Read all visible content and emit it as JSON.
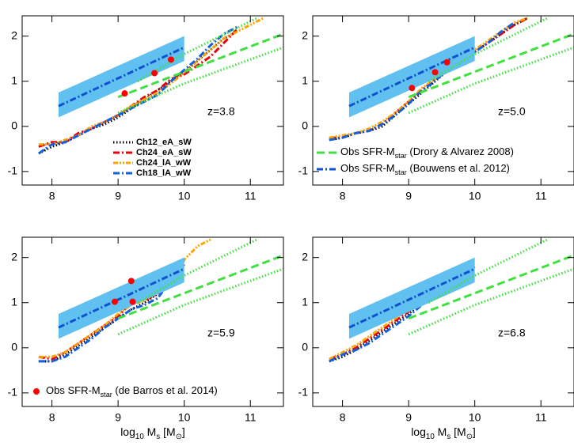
{
  "chart_data": [
    {
      "type": "line",
      "annotation": "z=3.8",
      "legend": "lower center",
      "xlim": [
        7.55,
        11.5
      ],
      "ylim": [
        -1.3,
        2.45
      ],
      "xticks": [
        8,
        9,
        10,
        11
      ],
      "yticks": [
        -1,
        0,
        1,
        2
      ],
      "series": [
        {
          "name": "Ch12_eA_sW",
          "color": "#000000",
          "style": "dotted",
          "x": [
            7.8,
            8.0,
            8.2,
            8.4,
            8.6,
            8.8,
            9.0,
            9.2,
            9.4,
            9.6,
            9.8,
            10.0,
            10.2,
            10.4,
            10.6,
            10.8
          ],
          "values": [
            -0.6,
            -0.45,
            -0.35,
            -0.2,
            -0.05,
            0.05,
            0.2,
            0.4,
            0.6,
            0.8,
            1.0,
            1.2,
            1.45,
            1.7,
            1.95,
            2.1
          ]
        },
        {
          "name": "Ch24_eA_sW",
          "color": "#e8000b",
          "style": "dashdot",
          "x": [
            7.8,
            8.0,
            8.2,
            8.4,
            8.6,
            8.8,
            9.0,
            9.2,
            9.4,
            9.6,
            9.8,
            10.0,
            10.2,
            10.4,
            10.6,
            10.8
          ],
          "values": [
            -0.45,
            -0.35,
            -0.35,
            -0.15,
            -0.05,
            0.1,
            0.25,
            0.45,
            0.65,
            0.8,
            1.05,
            1.15,
            1.35,
            1.55,
            1.85,
            2.15
          ]
        },
        {
          "name": "Ch24_lA_wW",
          "color": "#ffa500",
          "style": "dashdotdot",
          "x": [
            7.8,
            8.0,
            8.2,
            8.4,
            8.6,
            8.8,
            9.0,
            9.2,
            9.4,
            9.6,
            9.8,
            10.0,
            10.2,
            10.4,
            10.6,
            10.8,
            11.0,
            11.2
          ],
          "values": [
            -0.4,
            -0.4,
            -0.3,
            -0.2,
            0.0,
            0.1,
            0.25,
            0.45,
            0.6,
            0.75,
            0.95,
            1.2,
            1.45,
            1.7,
            1.95,
            2.1,
            2.25,
            2.4
          ]
        },
        {
          "name": "Ch18_lA_wW",
          "color": "#1060e0",
          "style": "dashdot",
          "x": [
            7.8,
            8.0,
            8.2,
            8.4,
            8.6,
            8.8,
            9.0,
            9.2,
            9.4,
            9.6,
            9.8,
            10.0,
            10.2,
            10.4,
            10.6,
            10.8
          ],
          "values": [
            -0.6,
            -0.4,
            -0.35,
            -0.2,
            -0.05,
            0.1,
            0.25,
            0.4,
            0.55,
            0.7,
            1.0,
            1.25,
            1.5,
            1.8,
            2.05,
            2.2
          ]
        },
        {
          "color": "#60c0f0",
          "style": "band",
          "x": [
            8.1,
            10.0
          ],
          "upper": [
            0.75,
            2.0
          ],
          "lower": [
            0.2,
            1.45
          ]
        },
        {
          "color": "#1050d0",
          "style": "dashdot",
          "x": [
            8.1,
            10.0
          ],
          "values": [
            0.45,
            1.75
          ]
        },
        {
          "color": "#40e040",
          "style": "dashed",
          "x": [
            9.0,
            11.5
          ],
          "values": [
            0.65,
            2.05
          ]
        },
        {
          "color": "#40e040",
          "style": "dotted",
          "x": [
            9.3,
            10.0,
            11.1
          ],
          "values": [
            1.0,
            1.6,
            2.4
          ]
        },
        {
          "color": "#40e040",
          "style": "dotted",
          "x": [
            9.0,
            10.0,
            11.5
          ],
          "values": [
            0.3,
            0.95,
            1.75
          ]
        },
        {
          "color": "#ff0000",
          "style": "points",
          "x": [
            9.1,
            9.55,
            9.8
          ],
          "values": [
            0.73,
            1.18,
            1.48
          ]
        }
      ]
    },
    {
      "type": "line",
      "annotation": "z=5.0",
      "legend": "lower left",
      "xlim": [
        7.55,
        11.5
      ],
      "ylim": [
        -1.3,
        2.45
      ],
      "xticks": [
        8,
        9,
        10,
        11
      ],
      "yticks": [
        -1,
        0,
        1,
        2
      ],
      "series": [
        {
          "color": "#000000",
          "style": "dotted",
          "x": [
            7.8,
            8.0,
            8.2,
            8.4,
            8.6,
            8.8,
            9.0,
            9.2,
            9.4,
            9.6,
            9.8,
            10.0,
            10.2,
            10.4,
            10.6,
            10.8
          ],
          "values": [
            -0.3,
            -0.25,
            -0.15,
            -0.1,
            0.0,
            0.25,
            0.5,
            0.75,
            1.0,
            1.25,
            1.45,
            1.65,
            1.85,
            2.05,
            2.25,
            2.4
          ]
        },
        {
          "color": "#e8000b",
          "style": "dashdot",
          "x": [
            7.8,
            8.0,
            8.2,
            8.4,
            8.6,
            8.8,
            9.0,
            9.2,
            9.4,
            9.6,
            9.8,
            10.0,
            10.2,
            10.4,
            10.6,
            10.8
          ],
          "values": [
            -0.25,
            -0.25,
            -0.15,
            -0.1,
            0.05,
            0.3,
            0.55,
            0.8,
            1.05,
            1.3,
            1.5,
            1.65,
            1.85,
            2.05,
            2.25,
            2.4
          ]
        },
        {
          "color": "#ffa500",
          "style": "dashdotdot",
          "x": [
            7.8,
            8.0,
            8.2,
            8.4,
            8.6,
            8.8,
            9.0,
            9.2,
            9.4,
            9.6,
            9.8,
            10.0,
            10.2,
            10.4,
            10.6,
            10.8
          ],
          "values": [
            -0.25,
            -0.2,
            -0.15,
            -0.05,
            0.1,
            0.3,
            0.55,
            0.85,
            1.05,
            1.3,
            1.55,
            1.7,
            1.9,
            2.1,
            2.3,
            2.4
          ]
        },
        {
          "color": "#1060e0",
          "style": "dashdot",
          "x": [
            7.8,
            8.0,
            8.2,
            8.4,
            8.6,
            8.8,
            9.0,
            9.2,
            9.4,
            9.6,
            9.8,
            10.0,
            10.2,
            10.4,
            10.6
          ],
          "values": [
            -0.3,
            -0.25,
            -0.15,
            -0.1,
            0.05,
            0.25,
            0.5,
            0.8,
            1.0,
            1.3,
            1.5,
            1.65,
            1.85,
            2.1,
            2.3
          ]
        },
        {
          "color": "#60c0f0",
          "style": "band",
          "x": [
            8.1,
            10.0
          ],
          "upper": [
            0.75,
            2.0
          ],
          "lower": [
            0.2,
            1.45
          ]
        },
        {
          "name": [
            "Obs SFR-M",
            "star",
            " (Bouwens et al. 2012)"
          ],
          "color": "#1050d0",
          "style": "dashdot",
          "x": [
            8.1,
            10.0
          ],
          "values": [
            0.45,
            1.75
          ]
        },
        {
          "name": [
            "Obs SFR-M",
            "star",
            " (Drory & Alvarez 2008)"
          ],
          "color": "#40e040",
          "style": "dashed",
          "x": [
            9.0,
            11.5
          ],
          "values": [
            0.65,
            2.05
          ]
        },
        {
          "color": "#40e040",
          "style": "dotted",
          "x": [
            9.3,
            10.0,
            11.1
          ],
          "values": [
            1.0,
            1.6,
            2.4
          ]
        },
        {
          "color": "#40e040",
          "style": "dotted",
          "x": [
            9.0,
            10.0,
            11.5
          ],
          "values": [
            0.3,
            0.95,
            1.75
          ]
        },
        {
          "color": "#ff0000",
          "style": "points",
          "x": [
            9.05,
            9.4,
            9.58
          ],
          "values": [
            0.85,
            1.2,
            1.42
          ]
        }
      ]
    },
    {
      "type": "line",
      "annotation": "z=5.9",
      "legend": "lower left",
      "xlabel": [
        "log",
        "10",
        " M",
        "s",
        " [M",
        "⊙",
        "]"
      ],
      "xlim": [
        7.55,
        11.5
      ],
      "ylim": [
        -1.3,
        2.45
      ],
      "xticks": [
        8,
        9,
        10,
        11
      ],
      "yticks": [
        -1,
        0,
        1,
        2
      ],
      "series": [
        {
          "color": "#000000",
          "style": "dotted",
          "x": [
            7.8,
            8.0,
            8.2,
            8.4,
            8.6,
            8.8,
            9.0,
            9.2,
            9.4,
            9.6,
            9.8,
            10.0
          ],
          "values": [
            -0.3,
            -0.3,
            -0.15,
            0.05,
            0.25,
            0.45,
            0.65,
            0.85,
            1.0,
            1.2,
            1.55,
            1.9
          ]
        },
        {
          "color": "#e8000b",
          "style": "dashdot",
          "x": [
            7.8,
            8.0,
            8.2,
            8.4,
            8.6,
            8.8,
            9.0,
            9.2,
            9.4,
            9.6,
            9.8,
            10.0
          ],
          "values": [
            -0.2,
            -0.25,
            -0.1,
            0.1,
            0.3,
            0.5,
            0.7,
            1.0,
            1.05,
            1.2,
            1.5,
            1.85
          ]
        },
        {
          "color": "#ffa500",
          "style": "dashdotdot",
          "x": [
            7.8,
            8.0,
            8.2,
            8.4,
            8.6,
            8.8,
            9.0,
            9.2,
            9.4,
            9.6,
            9.8,
            10.0,
            10.2,
            10.4
          ],
          "values": [
            -0.2,
            -0.2,
            -0.1,
            0.1,
            0.3,
            0.5,
            0.75,
            0.95,
            1.05,
            1.25,
            1.6,
            1.95,
            2.25,
            2.4
          ]
        },
        {
          "color": "#1060e0",
          "style": "dashdot",
          "x": [
            7.8,
            8.0,
            8.2,
            8.4,
            8.6,
            8.8,
            9.0,
            9.2,
            9.4,
            9.6,
            9.8,
            10.0
          ],
          "values": [
            -0.3,
            -0.3,
            -0.2,
            0.0,
            0.2,
            0.45,
            0.65,
            0.85,
            0.95,
            1.1,
            1.5,
            1.95
          ]
        },
        {
          "color": "#60c0f0",
          "style": "band",
          "x": [
            8.1,
            10.0
          ],
          "upper": [
            0.75,
            2.0
          ],
          "lower": [
            0.2,
            1.45
          ]
        },
        {
          "color": "#1050d0",
          "style": "dashdot",
          "x": [
            8.1,
            10.0
          ],
          "values": [
            0.45,
            1.75
          ]
        },
        {
          "color": "#40e040",
          "style": "dashed",
          "x": [
            9.0,
            11.5
          ],
          "values": [
            0.65,
            2.05
          ]
        },
        {
          "color": "#40e040",
          "style": "dotted",
          "x": [
            9.3,
            10.0,
            11.1
          ],
          "values": [
            1.0,
            1.6,
            2.4
          ]
        },
        {
          "color": "#40e040",
          "style": "dotted",
          "x": [
            9.0,
            10.0,
            11.5
          ],
          "values": [
            0.3,
            0.95,
            1.75
          ]
        },
        {
          "name": [
            "Obs SFR-M",
            "star",
            " (de Barros et al. 2014)"
          ],
          "color": "#ff0000",
          "style": "points",
          "x": [
            8.95,
            9.2,
            9.22
          ],
          "values": [
            1.02,
            1.48,
            1.02
          ]
        }
      ]
    },
    {
      "type": "line",
      "annotation": "z=6.8",
      "xlabel": [
        "log",
        "10",
        " M",
        "s",
        " [M",
        "⊙",
        "]"
      ],
      "xlim": [
        7.55,
        11.5
      ],
      "ylim": [
        -1.3,
        2.45
      ],
      "xticks": [
        8,
        9,
        10,
        11
      ],
      "yticks": [
        -1,
        0,
        1,
        2
      ],
      "series": [
        {
          "color": "#000000",
          "style": "dotted",
          "x": [
            7.8,
            8.0,
            8.2,
            8.4,
            8.6,
            8.8,
            9.0,
            9.2,
            9.4,
            9.6,
            9.8,
            10.0
          ],
          "values": [
            -0.3,
            -0.2,
            -0.05,
            0.15,
            0.35,
            0.55,
            0.75,
            1.0,
            1.35,
            1.5,
            1.65,
            1.8
          ]
        },
        {
          "color": "#e8000b",
          "style": "dashdot",
          "x": [
            7.8,
            8.0,
            8.2,
            8.4,
            8.6,
            8.8,
            9.0,
            9.2,
            9.4,
            9.6,
            9.8,
            10.0
          ],
          "values": [
            -0.25,
            -0.15,
            0.0,
            0.2,
            0.4,
            0.6,
            0.8,
            1.05,
            1.4,
            1.5,
            1.65,
            1.8
          ]
        },
        {
          "color": "#ffa500",
          "style": "dashdotdot",
          "x": [
            7.8,
            8.0,
            8.2,
            8.4,
            8.6,
            8.8,
            9.0,
            9.2,
            9.4,
            9.6,
            9.8,
            10.0
          ],
          "values": [
            -0.25,
            -0.1,
            0.05,
            0.25,
            0.45,
            0.65,
            0.85,
            1.1,
            1.4,
            1.5,
            1.65,
            1.8
          ]
        },
        {
          "color": "#1060e0",
          "style": "dashdot",
          "x": [
            7.8,
            8.0,
            8.2,
            8.4,
            8.6,
            8.8,
            9.0,
            9.2,
            9.4,
            9.6,
            9.8,
            10.0
          ],
          "values": [
            -0.3,
            -0.15,
            -0.05,
            0.1,
            0.3,
            0.5,
            0.7,
            0.95,
            1.3,
            1.5,
            1.65,
            1.8
          ]
        },
        {
          "color": "#60c0f0",
          "style": "band",
          "x": [
            8.1,
            10.0
          ],
          "upper": [
            0.75,
            2.0
          ],
          "lower": [
            0.2,
            1.45
          ]
        },
        {
          "color": "#1050d0",
          "style": "dashdot",
          "x": [
            8.1,
            10.0
          ],
          "values": [
            0.45,
            1.75
          ]
        },
        {
          "color": "#40e040",
          "style": "dashed",
          "x": [
            9.0,
            11.5
          ],
          "values": [
            0.65,
            2.05
          ]
        },
        {
          "color": "#40e040",
          "style": "dotted",
          "x": [
            9.3,
            10.0,
            11.1
          ],
          "values": [
            1.0,
            1.6,
            2.4
          ]
        },
        {
          "color": "#40e040",
          "style": "dotted",
          "x": [
            9.0,
            10.0,
            11.5
          ],
          "values": [
            0.3,
            0.95,
            1.75
          ]
        }
      ]
    }
  ]
}
